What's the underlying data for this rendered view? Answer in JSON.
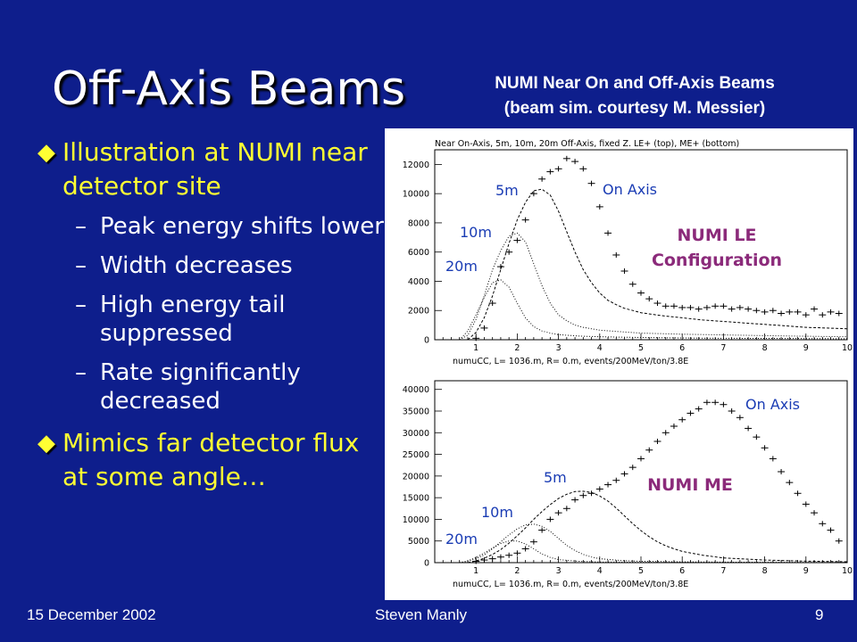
{
  "slide": {
    "title": "Off-Axis Beams",
    "figure_title_line1": "NUMI Near On and Off-Axis Beams",
    "figure_title_line2": "(beam sim. courtesy M. Messier)",
    "bullets": [
      {
        "text": "Illustration at NUMI near detector site",
        "subs": [
          "Peak energy shifts lower",
          "Width decreases",
          "High energy tail suppressed",
          "Rate significantly decreased"
        ]
      },
      {
        "text": "Mimics far detector flux at some angle…",
        "subs": []
      }
    ],
    "bullet_marker": "◆",
    "sub_marker": "–",
    "footer": {
      "date": "15 December 2002",
      "author": "Steven Manly",
      "page": "9"
    }
  },
  "colors": {
    "background": "#0e1e8c",
    "bullet_text": "#ffff33",
    "annotation": "#1a3cb4",
    "config_label": "#8b2a7a"
  },
  "chart_header": "Near On-Axis, 5m, 10m, 20m  Off-Axis, fixed Z.  LE+ (top), ME+ (bottom)",
  "chart_data": [
    {
      "type": "line",
      "name": "NUMI LE",
      "xlabel": "numuCC, L= 1036.m, R=  0.m, events/200MeV/ton/3.8E",
      "xlim": [
        0,
        10
      ],
      "ylim": [
        0,
        13000
      ],
      "xticks": [
        1,
        2,
        3,
        4,
        5,
        6,
        7,
        8,
        9,
        10
      ],
      "yticks": [
        0,
        2000,
        4000,
        6000,
        8000,
        10000,
        12000
      ],
      "config_label": [
        "NUMI LE",
        "Configuration"
      ],
      "series": [
        {
          "name": "On Axis",
          "style": "crosses",
          "x": [
            1.0,
            1.2,
            1.4,
            1.6,
            1.8,
            2.0,
            2.2,
            2.4,
            2.6,
            2.8,
            3.0,
            3.2,
            3.4,
            3.6,
            3.8,
            4.0,
            4.2,
            4.4,
            4.6,
            4.8,
            5.0,
            5.2,
            5.4,
            5.6,
            5.8,
            6.0,
            6.2,
            6.4,
            6.6,
            6.8,
            7.0,
            7.2,
            7.4,
            7.6,
            7.8,
            8.0,
            8.2,
            8.4,
            8.6,
            8.8,
            9.0,
            9.2,
            9.4,
            9.6,
            9.8
          ],
          "y": [
            100,
            800,
            2500,
            5000,
            6000,
            6800,
            8200,
            10000,
            11000,
            11500,
            11700,
            12400,
            12200,
            11700,
            10700,
            9100,
            7300,
            5800,
            4700,
            3800,
            3200,
            2800,
            2500,
            2300,
            2300,
            2200,
            2200,
            2100,
            2200,
            2300,
            2300,
            2100,
            2200,
            2100,
            2000,
            1900,
            2000,
            1800,
            1900,
            1900,
            1700,
            2100,
            1700,
            1900,
            1800
          ]
        },
        {
          "name": "5m",
          "style": "dashed",
          "x": [
            0.8,
            1.0,
            1.2,
            1.4,
            1.6,
            1.8,
            2.0,
            2.2,
            2.4,
            2.6,
            2.8,
            3.0,
            3.2,
            3.4,
            3.6,
            3.8,
            4.0,
            4.2,
            4.4,
            4.6,
            4.8,
            5.0,
            5.5,
            6.0,
            6.5,
            7.0,
            7.5,
            8.0,
            8.5,
            9.0,
            9.5,
            10.0
          ],
          "y": [
            0,
            500,
            1500,
            3000,
            4800,
            6600,
            8200,
            9400,
            10200,
            10300,
            9900,
            8800,
            7400,
            6000,
            4800,
            3900,
            3200,
            2700,
            2400,
            2150,
            2000,
            1850,
            1650,
            1500,
            1350,
            1250,
            1150,
            1050,
            950,
            850,
            800,
            750
          ]
        },
        {
          "name": "10m",
          "style": "dotted",
          "x": [
            0.6,
            0.8,
            1.0,
            1.2,
            1.4,
            1.6,
            1.8,
            2.0,
            2.2,
            2.4,
            2.6,
            2.8,
            3.0,
            3.2,
            3.4,
            3.6,
            3.8,
            4.0,
            4.5,
            5.0,
            6.0,
            7.0,
            8.0,
            9.0,
            10.0
          ],
          "y": [
            0,
            300,
            1400,
            3000,
            4800,
            6100,
            7100,
            7300,
            6700,
            5200,
            3700,
            2500,
            1700,
            1300,
            1000,
            850,
            750,
            650,
            550,
            450,
            380,
            330,
            280,
            240,
            200
          ]
        },
        {
          "name": "20m",
          "style": "dotted",
          "x": [
            0.6,
            0.8,
            1.0,
            1.2,
            1.4,
            1.6,
            1.8,
            2.0,
            2.2,
            2.4,
            2.6,
            2.8,
            3.0,
            3.5,
            4.0,
            5.0,
            6.0,
            7.0,
            8.0,
            9.0,
            10.0
          ],
          "y": [
            0,
            600,
            1700,
            2900,
            3900,
            4100,
            3600,
            2500,
            1500,
            900,
            600,
            450,
            350,
            250,
            200,
            150,
            120,
            100,
            90,
            80,
            70
          ]
        }
      ],
      "labels": [
        "5m",
        "10m",
        "20m",
        "On Axis"
      ]
    },
    {
      "type": "line",
      "name": "NUMI ME",
      "xlabel": "numuCC, L= 1036.m, R=  0.m, events/200MeV/ton/3.8E",
      "xlim": [
        0,
        10
      ],
      "ylim": [
        0,
        42000
      ],
      "xticks": [
        1,
        2,
        3,
        4,
        5,
        6,
        7,
        8,
        9,
        10
      ],
      "yticks": [
        0,
        5000,
        10000,
        15000,
        20000,
        25000,
        30000,
        35000,
        40000
      ],
      "config_label": [
        "NUMI ME"
      ],
      "series": [
        {
          "name": "On Axis",
          "style": "crosses",
          "x": [
            1.0,
            1.2,
            1.4,
            1.6,
            1.8,
            2.0,
            2.2,
            2.4,
            2.6,
            2.8,
            3.0,
            3.2,
            3.4,
            3.6,
            3.8,
            4.0,
            4.2,
            4.4,
            4.6,
            4.8,
            5.0,
            5.2,
            5.4,
            5.6,
            5.8,
            6.0,
            6.2,
            6.4,
            6.6,
            6.8,
            7.0,
            7.2,
            7.4,
            7.6,
            7.8,
            8.0,
            8.2,
            8.4,
            8.6,
            8.8,
            9.0,
            9.2,
            9.4,
            9.6,
            9.8
          ],
          "y": [
            300,
            600,
            900,
            1300,
            1700,
            2200,
            3200,
            4800,
            7500,
            10000,
            11500,
            12500,
            14500,
            15500,
            16000,
            17000,
            18000,
            19000,
            20500,
            22000,
            24000,
            26000,
            28000,
            30000,
            31500,
            33000,
            34500,
            35500,
            37000,
            37000,
            36500,
            35000,
            33500,
            31000,
            29000,
            26500,
            24000,
            21000,
            18500,
            16000,
            13500,
            11500,
            9000,
            7500,
            5000
          ]
        },
        {
          "name": "5m",
          "style": "dashed",
          "x": [
            0.8,
            1.0,
            1.2,
            1.4,
            1.6,
            1.8,
            2.0,
            2.2,
            2.4,
            2.6,
            2.8,
            3.0,
            3.2,
            3.4,
            3.6,
            3.8,
            4.0,
            4.2,
            4.4,
            4.6,
            4.8,
            5.0,
            5.2,
            5.4,
            5.6,
            5.8,
            6.0,
            6.5,
            7.0,
            8.0,
            9.0,
            10.0
          ],
          "y": [
            0,
            400,
            1000,
            1900,
            3000,
            4500,
            6200,
            8000,
            10000,
            11800,
            13400,
            14800,
            15800,
            16400,
            16500,
            16200,
            15400,
            14200,
            12600,
            10800,
            9000,
            7400,
            6000,
            4800,
            3900,
            3200,
            2600,
            1700,
            1100,
            600,
            350,
            200
          ]
        },
        {
          "name": "10m",
          "style": "dotted",
          "x": [
            0.6,
            0.8,
            1.0,
            1.2,
            1.4,
            1.6,
            1.8,
            2.0,
            2.2,
            2.4,
            2.6,
            2.8,
            3.0,
            3.2,
            3.4,
            3.6,
            3.8,
            4.0,
            4.5,
            5.0,
            6.0,
            7.0,
            8.0,
            10.0
          ],
          "y": [
            0,
            300,
            900,
            1800,
            3200,
            4800,
            6400,
            7800,
            8700,
            8900,
            8400,
            7200,
            5600,
            4000,
            2800,
            1900,
            1300,
            900,
            500,
            300,
            180,
            120,
            80,
            50
          ]
        },
        {
          "name": "20m",
          "style": "dotted",
          "x": [
            0.6,
            0.8,
            1.0,
            1.2,
            1.4,
            1.6,
            1.8,
            2.0,
            2.2,
            2.4,
            2.6,
            2.8,
            3.0,
            3.5,
            4.0,
            5.0,
            6.0,
            8.0,
            10.0
          ],
          "y": [
            0,
            400,
            1200,
            2200,
            3400,
            4400,
            5000,
            5000,
            4300,
            3200,
            2000,
            1200,
            700,
            300,
            150,
            80,
            50,
            30,
            20
          ]
        }
      ],
      "labels": [
        "5m",
        "10m",
        "20m",
        "On Axis"
      ]
    }
  ]
}
